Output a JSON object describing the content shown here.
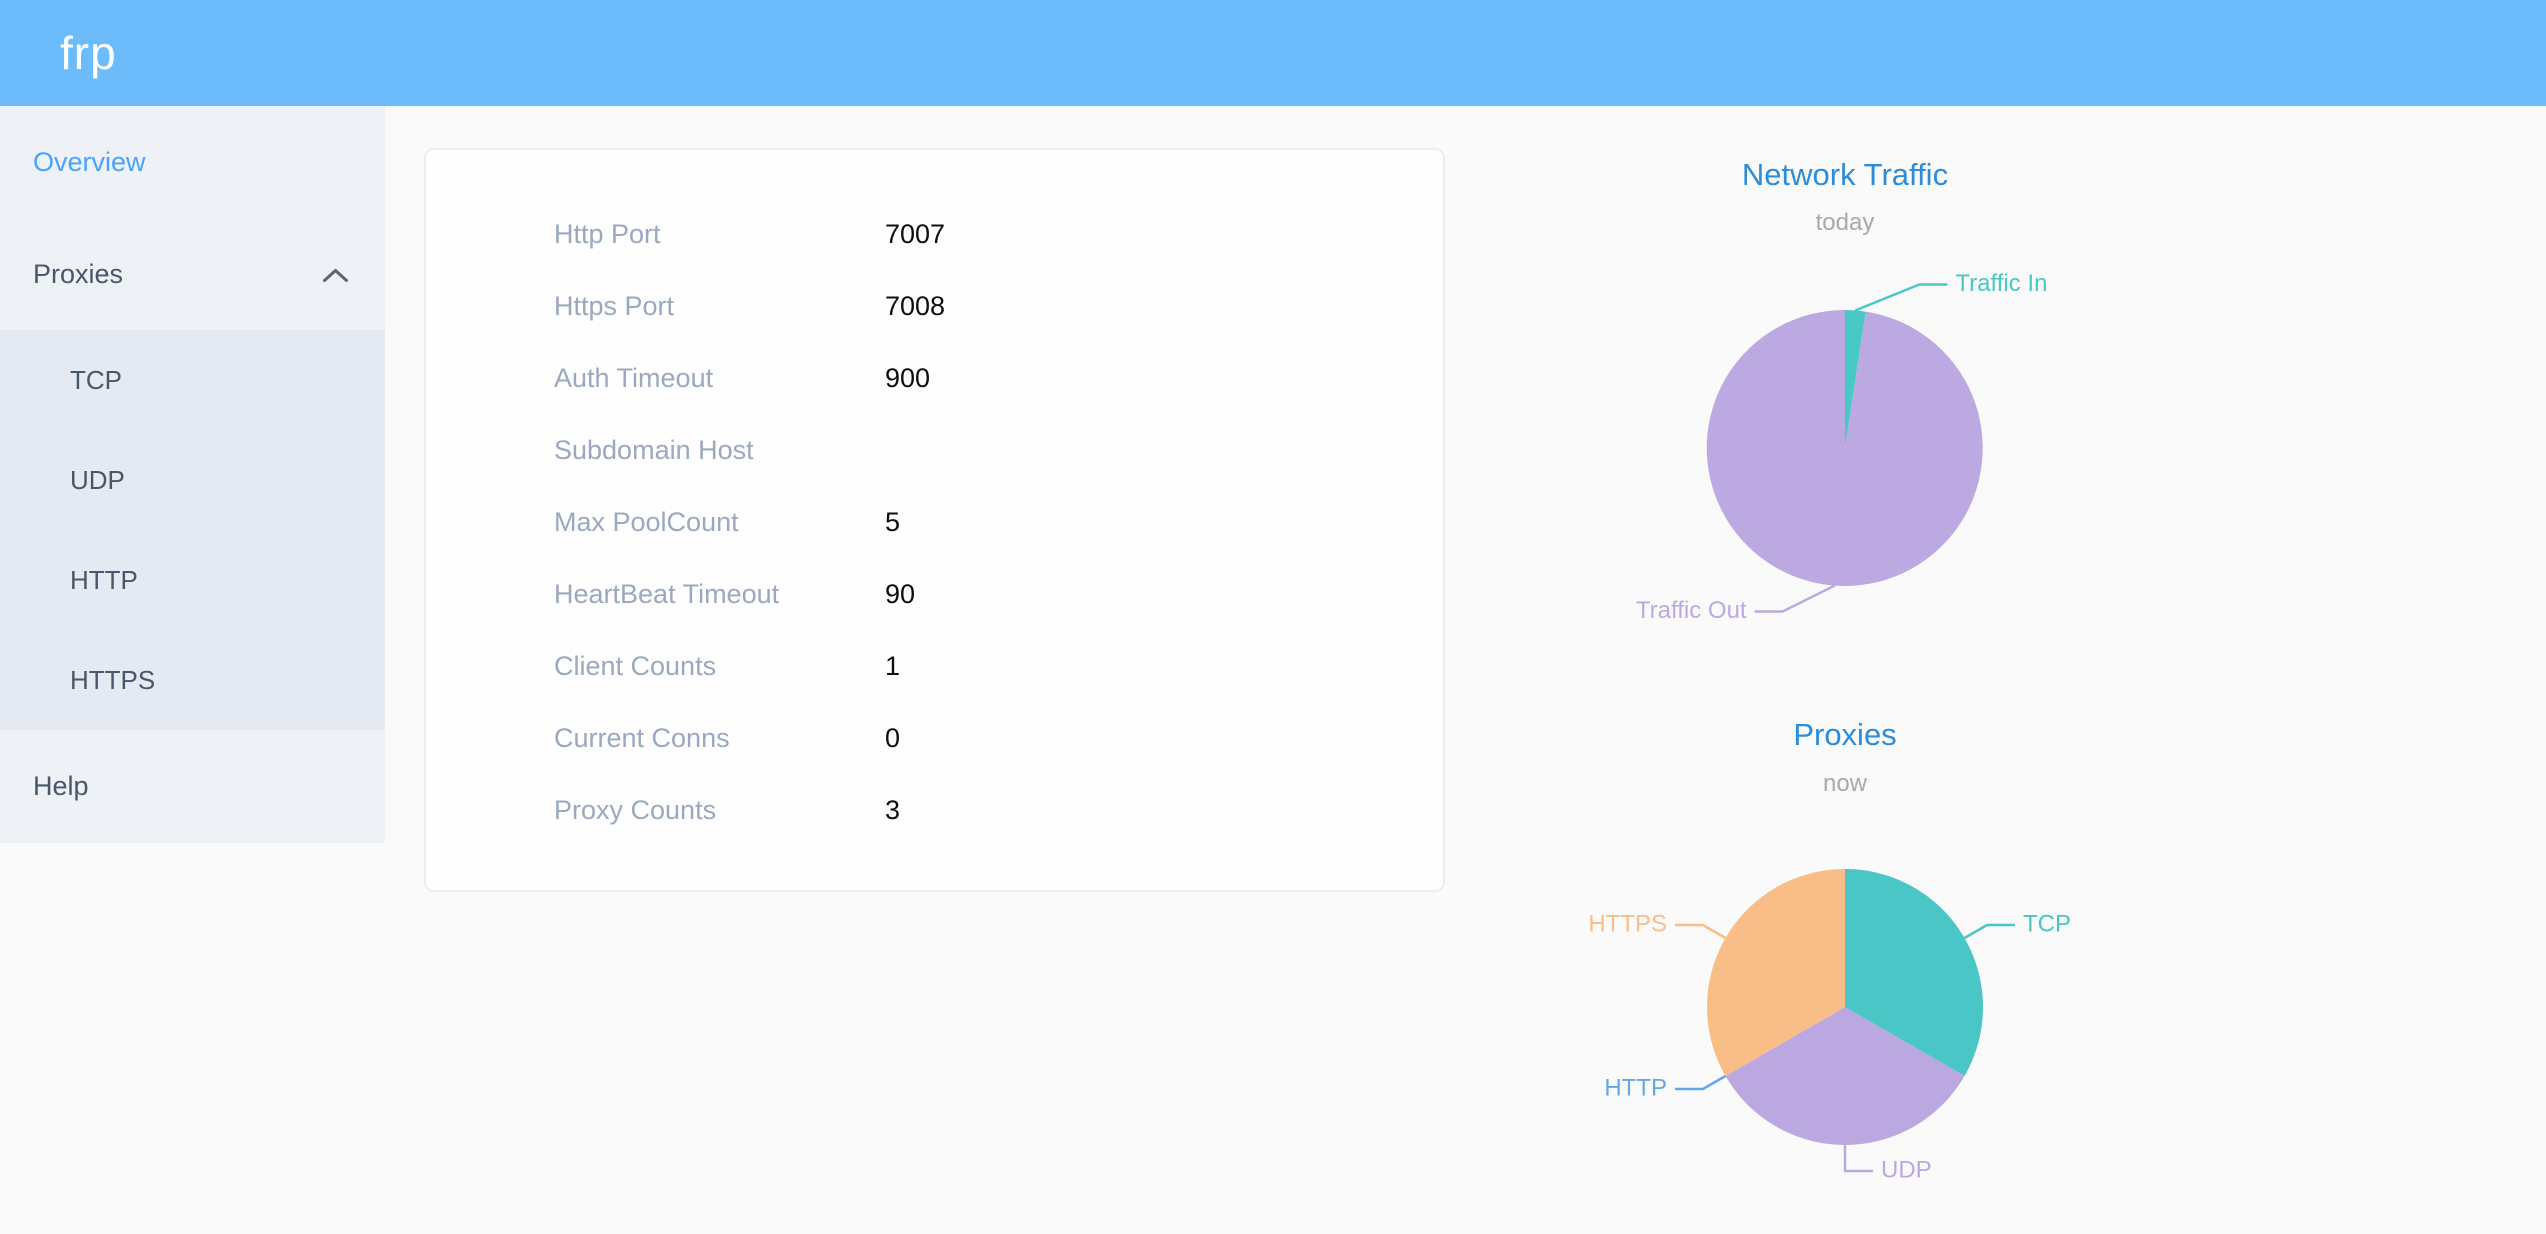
{
  "header": {
    "brand": "frp"
  },
  "sidebar": {
    "overview_label": "Overview",
    "proxies_label": "Proxies",
    "proxy_types": [
      "TCP",
      "UDP",
      "HTTP",
      "HTTPS"
    ],
    "help_label": "Help",
    "active_item": "Overview"
  },
  "server_info": {
    "rows": [
      {
        "label": "Http Port",
        "value": "7007"
      },
      {
        "label": "Https Port",
        "value": "7008"
      },
      {
        "label": "Auth Timeout",
        "value": "900"
      },
      {
        "label": "Subdomain Host",
        "value": ""
      },
      {
        "label": "Max PoolCount",
        "value": "5"
      },
      {
        "label": "HeartBeat Timeout",
        "value": "90"
      },
      {
        "label": "Client Counts",
        "value": "1"
      },
      {
        "label": "Current Conns",
        "value": "0"
      },
      {
        "label": "Proxy Counts",
        "value": "3"
      }
    ]
  },
  "chart_data": [
    {
      "type": "pie",
      "title": "Network Traffic",
      "subtitle": "today",
      "legend_position": "none",
      "slices": [
        {
          "name": "Traffic In",
          "value": 2.4,
          "color": "#48c8c6"
        },
        {
          "name": "Traffic Out",
          "value": 97.6,
          "color": "#bda9e1"
        }
      ]
    },
    {
      "type": "pie",
      "title": "Proxies",
      "subtitle": "now",
      "legend_position": "none",
      "slices": [
        {
          "name": "TCP",
          "value": 1,
          "color": "#4ac6c6"
        },
        {
          "name": "UDP",
          "value": 1,
          "color": "#bca8e0"
        },
        {
          "name": "HTTP",
          "value": 0,
          "color": "#64a7ea"
        },
        {
          "name": "HTTPS",
          "value": 1,
          "color": "#f9be88"
        }
      ]
    }
  ],
  "colors": {
    "header_bg": "#6cbcfb",
    "sidebar_bg": "#eef1f6",
    "submenu_bg": "#e5e9f1",
    "menu_text": "#48576a",
    "active_link": "#4aa3fa",
    "page_bg": "#fafafa",
    "card_border": "#e9edf6",
    "info_label": "#9aa9bf",
    "info_value": "#0d0e0f",
    "chart_title": "#2d8cd8",
    "chart_subtitle": "#a9a9a9"
  }
}
